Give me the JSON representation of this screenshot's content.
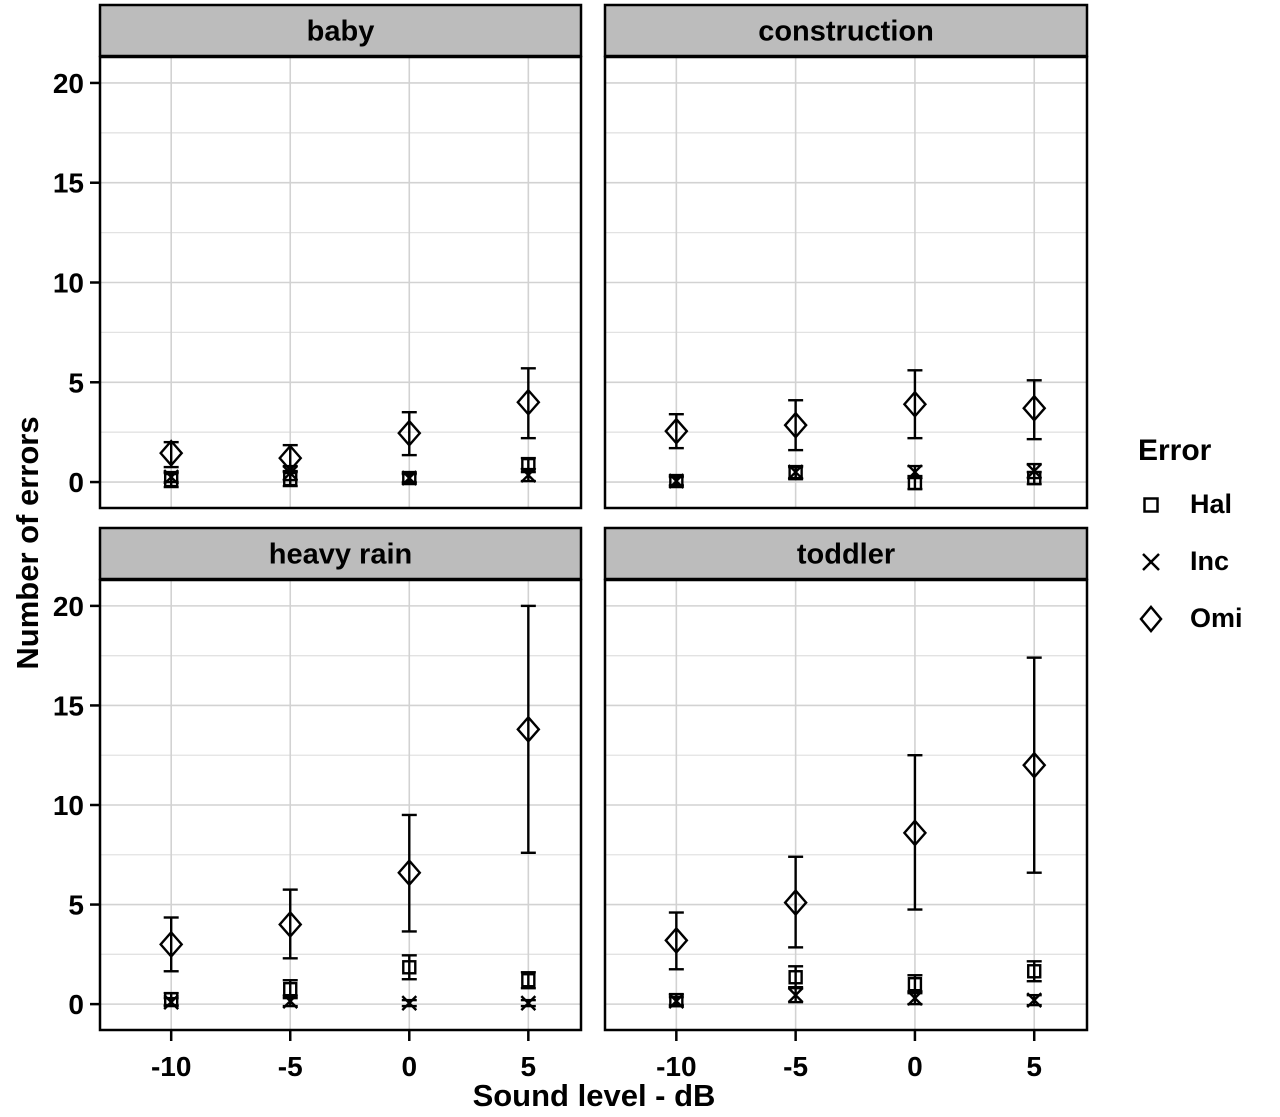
{
  "figure": {
    "y_axis_title": "Number of errors",
    "x_axis_title": "Sound level - dB",
    "legend": {
      "title": "Error",
      "items": [
        {
          "label": "Hal",
          "marker": "square"
        },
        {
          "label": "Inc",
          "marker": "x"
        },
        {
          "label": "Omi",
          "marker": "diamond"
        }
      ]
    },
    "colors": {
      "foreground": "#000000",
      "strip_bg": "#bcbcbc",
      "panel_bg": "#ffffff",
      "grid_major": "#d2d2d2",
      "grid_minor": "#e2e2e2"
    }
  },
  "chart_data": {
    "type": "scatter",
    "subtype": "faceted means with error bars",
    "title": "",
    "xlabel": "Sound level - dB",
    "ylabel": "Number of errors",
    "x": [
      -10,
      -5,
      0,
      5
    ],
    "x_tick_labels": [
      "-10",
      "-5",
      "0",
      "5"
    ],
    "y_ticks": [
      0,
      5,
      10,
      15,
      20
    ],
    "ylim": [
      -1.3,
      21.3
    ],
    "grid": true,
    "legend_position": "right",
    "legend_title": "Error",
    "point_format": "[mean, ci_lower, ci_upper]",
    "facets": [
      {
        "title": "baby",
        "row": 0,
        "col": 0,
        "series": [
          {
            "name": "Hal",
            "marker": "square",
            "points": [
              [
                0.1,
                -0.25,
                0.45
              ],
              [
                0.15,
                -0.2,
                0.5
              ],
              [
                0.2,
                -0.05,
                0.45
              ],
              [
                0.85,
                0.5,
                1.2
              ]
            ]
          },
          {
            "name": "Inc",
            "marker": "x",
            "points": [
              [
                0.25,
                0.0,
                0.5
              ],
              [
                0.45,
                0.1,
                0.8
              ],
              [
                0.2,
                0.0,
                0.4
              ],
              [
                0.35,
                0.05,
                0.65
              ]
            ]
          },
          {
            "name": "Omi",
            "marker": "diamond",
            "points": [
              [
                1.45,
                0.75,
                2.0
              ],
              [
                1.2,
                0.55,
                1.85
              ],
              [
                2.45,
                1.35,
                3.5
              ],
              [
                4.0,
                2.2,
                5.7
              ]
            ]
          }
        ]
      },
      {
        "title": "construction",
        "row": 0,
        "col": 1,
        "series": [
          {
            "name": "Hal",
            "marker": "square",
            "points": [
              [
                0.05,
                -0.2,
                0.3
              ],
              [
                0.45,
                0.15,
                0.75
              ],
              [
                -0.05,
                -0.35,
                0.3
              ],
              [
                0.2,
                -0.1,
                0.5
              ]
            ]
          },
          {
            "name": "Inc",
            "marker": "x",
            "points": [
              [
                0.05,
                -0.15,
                0.25
              ],
              [
                0.5,
                0.2,
                0.8
              ],
              [
                0.5,
                0.2,
                0.8
              ],
              [
                0.55,
                0.2,
                0.9
              ]
            ]
          },
          {
            "name": "Omi",
            "marker": "diamond",
            "points": [
              [
                2.55,
                1.7,
                3.4
              ],
              [
                2.85,
                1.6,
                4.1
              ],
              [
                3.9,
                2.2,
                5.6
              ],
              [
                3.7,
                2.15,
                5.1
              ]
            ]
          }
        ]
      },
      {
        "title": "heavy rain",
        "row": 1,
        "col": 0,
        "series": [
          {
            "name": "Hal",
            "marker": "square",
            "points": [
              [
                0.25,
                -0.05,
                0.55
              ],
              [
                0.75,
                0.3,
                1.2
              ],
              [
                1.85,
                1.25,
                2.45
              ],
              [
                1.2,
                0.8,
                1.6
              ]
            ]
          },
          {
            "name": "Inc",
            "marker": "x",
            "points": [
              [
                0.1,
                -0.1,
                0.3
              ],
              [
                0.15,
                -0.1,
                0.4
              ],
              [
                0.05,
                -0.1,
                0.2
              ],
              [
                0.05,
                -0.1,
                0.2
              ]
            ]
          },
          {
            "name": "Omi",
            "marker": "diamond",
            "points": [
              [
                3.0,
                1.65,
                4.35
              ],
              [
                4.0,
                2.3,
                5.75
              ],
              [
                6.6,
                3.65,
                9.5
              ],
              [
                13.8,
                7.6,
                20.0
              ]
            ]
          }
        ]
      },
      {
        "title": "toddler",
        "row": 1,
        "col": 1,
        "series": [
          {
            "name": "Hal",
            "marker": "square",
            "points": [
              [
                0.2,
                -0.1,
                0.5
              ],
              [
                1.35,
                0.85,
                1.9
              ],
              [
                1.0,
                0.55,
                1.45
              ],
              [
                1.65,
                1.15,
                2.15
              ]
            ]
          },
          {
            "name": "Inc",
            "marker": "x",
            "points": [
              [
                0.15,
                -0.05,
                0.35
              ],
              [
                0.45,
                0.1,
                0.8
              ],
              [
                0.3,
                0.0,
                0.65
              ],
              [
                0.2,
                -0.05,
                0.45
              ]
            ]
          },
          {
            "name": "Omi",
            "marker": "diamond",
            "points": [
              [
                3.2,
                1.75,
                4.6
              ],
              [
                5.1,
                2.85,
                7.4
              ],
              [
                8.6,
                4.75,
                12.5
              ],
              [
                12.0,
                6.6,
                17.4
              ]
            ]
          }
        ]
      }
    ]
  }
}
